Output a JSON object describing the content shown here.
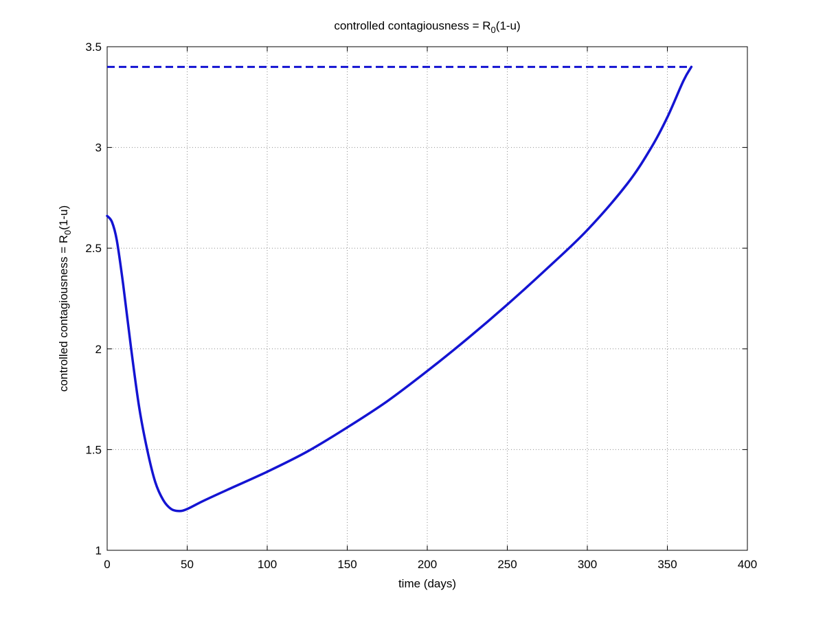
{
  "chart_data": {
    "type": "line",
    "title": "controlled contagiousness = R",
    "title_subscript": "0",
    "title_suffix": "(1-u)",
    "xlabel": "time (days)",
    "ylabel": "controlled contagiousness = R",
    "ylabel_subscript": "0",
    "ylabel_suffix": "(1-u)",
    "xlim": [
      0,
      400
    ],
    "ylim": [
      1,
      3.5
    ],
    "grid": true,
    "legend": "none",
    "x_ticks": [
      "0",
      "50",
      "100",
      "150",
      "200",
      "250",
      "300",
      "350",
      "400"
    ],
    "y_ticks": [
      "1",
      "1.5",
      "2",
      "2.5",
      "3",
      "3.5"
    ],
    "series": [
      {
        "style": "solid",
        "color": "#1414d2",
        "x": [
          0,
          3,
          6,
          10,
          15,
          20,
          25,
          30,
          35,
          40,
          45,
          50,
          60,
          75,
          100,
          125,
          150,
          175,
          200,
          225,
          250,
          275,
          300,
          325,
          340,
          350,
          360,
          365
        ],
        "y": [
          2.66,
          2.63,
          2.54,
          2.32,
          2.0,
          1.71,
          1.5,
          1.34,
          1.25,
          1.205,
          1.195,
          1.205,
          1.245,
          1.3,
          1.39,
          1.49,
          1.61,
          1.74,
          1.89,
          2.05,
          2.22,
          2.4,
          2.59,
          2.82,
          3.0,
          3.15,
          3.33,
          3.4
        ]
      },
      {
        "style": "dashed",
        "color": "#1414d2",
        "x": [
          0,
          365
        ],
        "y": [
          3.4,
          3.4
        ]
      }
    ]
  }
}
